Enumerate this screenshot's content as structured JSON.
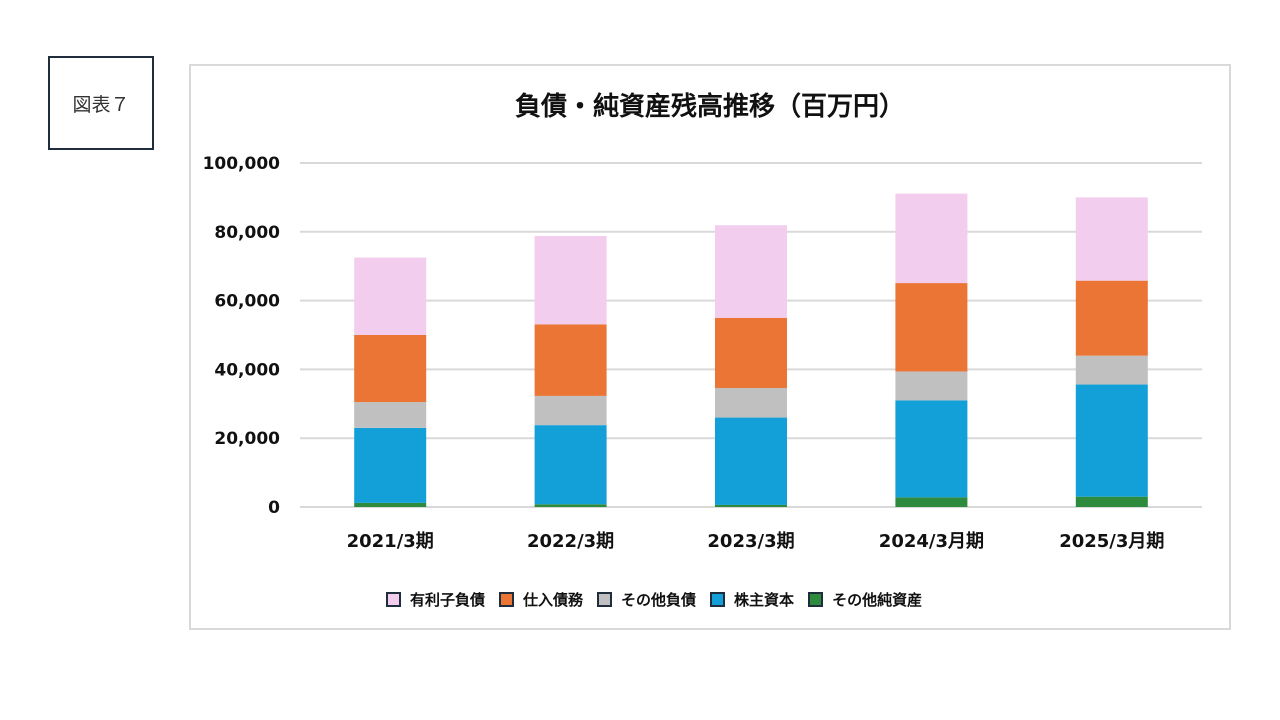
{
  "figure_label": "図表７",
  "chart_data": {
    "type": "bar",
    "stacked": true,
    "title": "負債・純資産残高推移（百万円）",
    "xlabel": "",
    "ylabel": "",
    "ylim": [
      0,
      100000
    ],
    "yticks": [
      0,
      20000,
      40000,
      60000,
      80000,
      100000
    ],
    "ytick_labels": [
      "0",
      "20,000",
      "40,000",
      "60,000",
      "80,000",
      "100,000"
    ],
    "grid": true,
    "legend_position": "bottom",
    "categories": [
      "2021/3期",
      "2022/3期",
      "2023/3期",
      "2024/3月期",
      "2025/3月期"
    ],
    "series": [
      {
        "name": "その他純資産",
        "color": "#2e8b3e",
        "values": [
          1200,
          800,
          600,
          2800,
          3000
        ]
      },
      {
        "name": "株主資本",
        "color": "#139fd7",
        "values": [
          21800,
          23000,
          25400,
          28200,
          32600
        ]
      },
      {
        "name": "その他負債",
        "color": "#c0c0c0",
        "values": [
          7500,
          8500,
          8600,
          8400,
          8400
        ]
      },
      {
        "name": "仕入債務",
        "color": "#ea7535",
        "values": [
          19500,
          20800,
          20400,
          25700,
          21800
        ]
      },
      {
        "name": "有利子負債",
        "color": "#f2cdee",
        "values": [
          22500,
          25700,
          26900,
          26000,
          24200
        ]
      }
    ],
    "legend_order": [
      "有利子負債",
      "仕入債務",
      "その他負債",
      "株主資本",
      "その他純資産"
    ]
  }
}
